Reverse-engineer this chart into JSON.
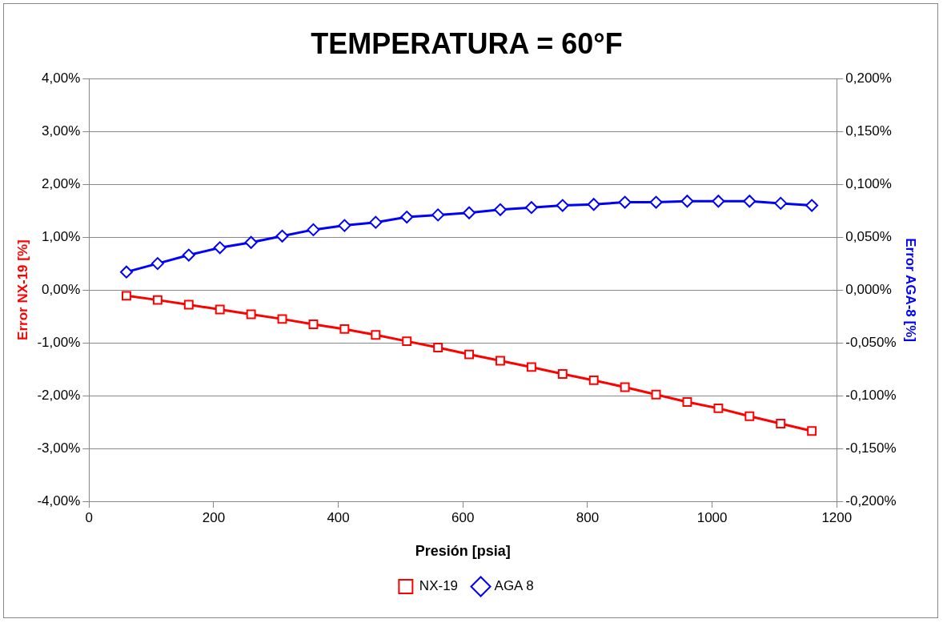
{
  "chart_data": {
    "type": "line",
    "title": "TEMPERATURA = 60°F",
    "xlabel": "Presión [psia]",
    "ylabel": "Error NX-19 [%]",
    "y2label": "Error AGA-8 [%]",
    "x": [
      60,
      110,
      160,
      210,
      260,
      310,
      360,
      410,
      460,
      510,
      560,
      610,
      660,
      710,
      760,
      810,
      860,
      910,
      960,
      1010,
      1060,
      1110,
      1160
    ],
    "xlim": [
      0,
      1200
    ],
    "xticks": [
      0,
      200,
      400,
      600,
      800,
      1000,
      1200
    ],
    "ylim": [
      -4,
      4
    ],
    "yticks": [
      {
        "value": -4,
        "label": "-4,00%"
      },
      {
        "value": -3,
        "label": "-3,00%"
      },
      {
        "value": -2,
        "label": "-2,00%"
      },
      {
        "value": -1,
        "label": "-1,00%"
      },
      {
        "value": 0,
        "label": "0,00%"
      },
      {
        "value": 1,
        "label": "1,00%"
      },
      {
        "value": 2,
        "label": "2,00%"
      },
      {
        "value": 3,
        "label": "3,00%"
      },
      {
        "value": 4,
        "label": "4,00%"
      }
    ],
    "y2lim": [
      -0.2,
      0.2
    ],
    "y2ticks": [
      {
        "value": -0.2,
        "label": "-0,200%"
      },
      {
        "value": -0.15,
        "label": "-0,150%"
      },
      {
        "value": -0.1,
        "label": "-0,100%"
      },
      {
        "value": -0.05,
        "label": "-0,050%"
      },
      {
        "value": 0,
        "label": "0,000%"
      },
      {
        "value": 0.05,
        "label": "0,050%"
      },
      {
        "value": 0.1,
        "label": "0,100%"
      },
      {
        "value": 0.15,
        "label": "0,150%"
      },
      {
        "value": 0.2,
        "label": "0,200%"
      }
    ],
    "grid": "y",
    "legend": "bottom",
    "series": [
      {
        "name": "NX-19",
        "color": "#ff0000",
        "marker": "square",
        "values": [
          -0.11,
          -0.19,
          -0.28,
          -0.37,
          -0.46,
          -0.55,
          -0.65,
          -0.74,
          -0.85,
          -0.97,
          -1.09,
          -1.22,
          -1.34,
          -1.46,
          -1.59,
          -1.71,
          -1.84,
          -1.98,
          -2.12,
          -2.24,
          -2.39,
          -2.53,
          -2.67
        ]
      },
      {
        "name": "AGA 8",
        "color": "#0000ff",
        "marker": "diamond",
        "axis": "y2",
        "values": [
          0.017,
          0.025,
          0.033,
          0.04,
          0.045,
          0.051,
          0.057,
          0.061,
          0.064,
          0.069,
          0.071,
          0.073,
          0.076,
          0.078,
          0.08,
          0.081,
          0.083,
          0.083,
          0.084,
          0.084,
          0.084,
          0.082,
          0.08
        ]
      }
    ]
  }
}
